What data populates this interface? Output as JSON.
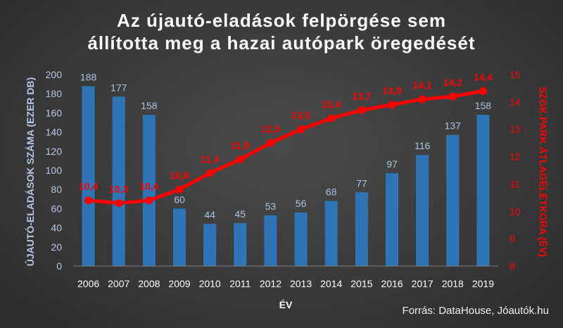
{
  "chart_data": {
    "type": "bar+line",
    "title": "Az újautó-eladások felpörgése sem\nállította meg a hazai autópark öregedését",
    "title_line1": "Az újautó-eladások felpörgése sem",
    "title_line2": "állította meg a hazai autópark öregedését",
    "xlabel": "ÉV",
    "ylabel_left": "ÚJAUTÓ-ELADÁSOK SZÁMA (EZER DB)",
    "ylabel_right": "SZGK.PARK ÁTLAGÉLETKORA (ÉV)",
    "categories": [
      "2006",
      "2007",
      "2008",
      "2009",
      "2010",
      "2011",
      "2012",
      "2013",
      "2014",
      "2015",
      "2016",
      "2017",
      "2018",
      "2019"
    ],
    "bar_values": [
      188,
      177,
      158,
      60,
      44,
      45,
      53,
      56,
      68,
      77,
      97,
      116,
      137,
      158
    ],
    "bar_labels": [
      "188",
      "177",
      "158",
      "60",
      "44",
      "45",
      "53",
      "56",
      "68",
      "77",
      "97",
      "116",
      "137",
      "158"
    ],
    "line_values": [
      10.4,
      10.3,
      10.4,
      10.8,
      11.4,
      11.9,
      12.5,
      13.0,
      13.4,
      13.7,
      13.9,
      14.1,
      14.2,
      14.4
    ],
    "line_labels": [
      "10,4",
      "10,3",
      "10,4",
      "10,8",
      "11,4",
      "11,9",
      "12,5",
      "13,0",
      "13,4",
      "13,7",
      "13,9",
      "14,1",
      "14,2",
      "14,4"
    ],
    "ylim_left": [
      0,
      200
    ],
    "yticks_left": [
      "0",
      "20",
      "40",
      "60",
      "80",
      "100",
      "120",
      "140",
      "160",
      "180",
      "200"
    ],
    "ylim_right": [
      8,
      15
    ],
    "yticks_right": [
      "8",
      "9",
      "10",
      "11",
      "12",
      "13",
      "14",
      "15"
    ],
    "grid": false,
    "legend": "none",
    "colors": {
      "bars": "#2e75b6",
      "bar_labels": "#a9c4e8",
      "line": "#ff0000",
      "left_axis_text": "#b4c7e7",
      "right_axis_text": "#ff0000",
      "x_axis_text": "#ffffff",
      "title": "#ffffff"
    }
  },
  "source": "Forrás: DataHouse, Jóautók.hu"
}
